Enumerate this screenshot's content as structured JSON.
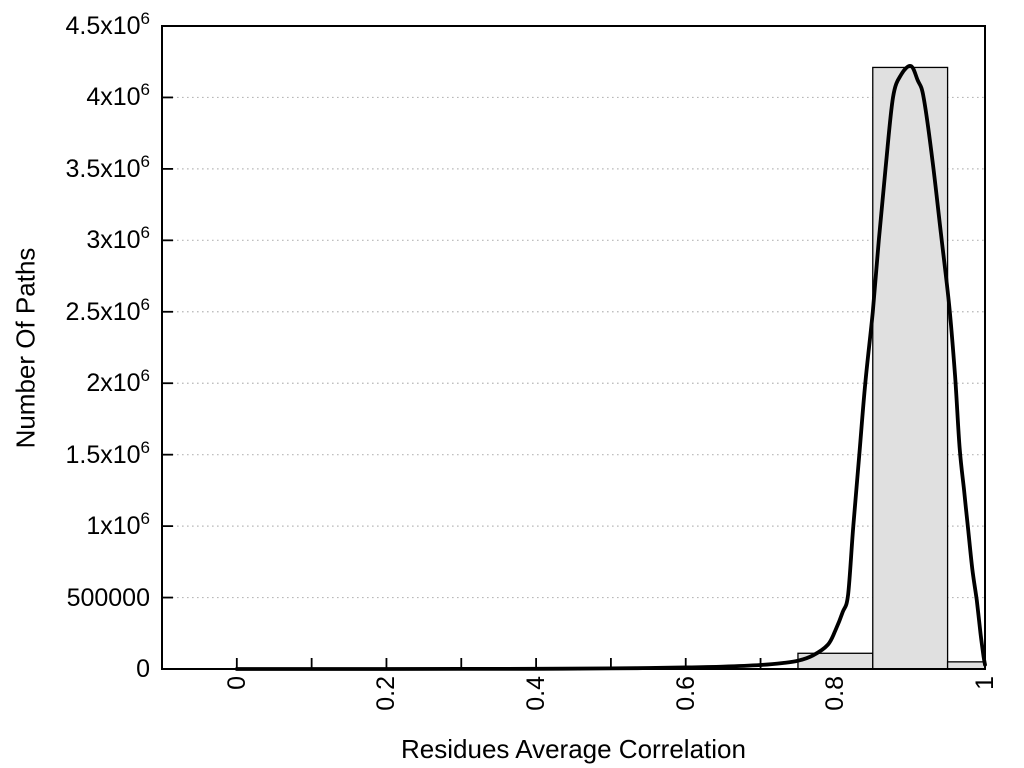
{
  "background_color": "#ffffff",
  "chart_data": {
    "type": "bar",
    "subtype": "histogram-with-fit-curve",
    "title": "",
    "xlabel": "Residues Average Correlation",
    "ylabel": "Number Of Paths",
    "xlim": [
      -0.1,
      1.0
    ],
    "ylim": [
      0,
      4500000
    ],
    "grid": "horizontal dotted gridlines at y major ticks",
    "legend": "none",
    "axis_color": "#000000",
    "gridline_color": "#b8b8b8",
    "x_tick_label_rotation_deg": -90,
    "x_ticks": [
      {
        "value": 0.0,
        "label": "0"
      },
      {
        "value": 0.1,
        "label": ""
      },
      {
        "value": 0.2,
        "label": "0.2"
      },
      {
        "value": 0.3,
        "label": ""
      },
      {
        "value": 0.4,
        "label": "0.4"
      },
      {
        "value": 0.5,
        "label": ""
      },
      {
        "value": 0.6,
        "label": "0.6"
      },
      {
        "value": 0.7,
        "label": ""
      },
      {
        "value": 0.8,
        "label": "0.8"
      },
      {
        "value": 0.9,
        "label": ""
      },
      {
        "value": 1.0,
        "label": "1"
      }
    ],
    "y_ticks": [
      {
        "value": 0,
        "label": "0"
      },
      {
        "value": 500000,
        "label": "500000"
      },
      {
        "value": 1000000,
        "label": "1x10^6"
      },
      {
        "value": 1500000,
        "label": "1.5x10^6"
      },
      {
        "value": 2000000,
        "label": "2x10^6"
      },
      {
        "value": 2500000,
        "label": "2.5x10^6"
      },
      {
        "value": 3000000,
        "label": "3x10^6"
      },
      {
        "value": 3500000,
        "label": "3.5x10^6"
      },
      {
        "value": 4000000,
        "label": "4x10^6"
      },
      {
        "value": 4500000,
        "label": "4.5x10^6"
      }
    ],
    "histogram": {
      "bin_width": 0.1,
      "fill_color": "#e0e0e0",
      "stroke_color": "#000000",
      "bars": [
        {
          "x0": 0.75,
          "x1": 0.85,
          "count": 110000
        },
        {
          "x0": 0.85,
          "x1": 0.95,
          "count": 4210000
        },
        {
          "x0": 0.95,
          "x1": 1.0,
          "count": 50000
        }
      ]
    },
    "curve": {
      "name": "density-fit-curve",
      "color": "#000000",
      "stroke_width": 3.8,
      "peak": {
        "x": 0.901,
        "y": 4220000
      },
      "points": [
        [
          0.0,
          0
        ],
        [
          0.1,
          0
        ],
        [
          0.2,
          0
        ],
        [
          0.3,
          500
        ],
        [
          0.4,
          1500
        ],
        [
          0.5,
          4000
        ],
        [
          0.55,
          7000
        ],
        [
          0.6,
          11000
        ],
        [
          0.65,
          17000
        ],
        [
          0.7,
          28000
        ],
        [
          0.73,
          42000
        ],
        [
          0.75,
          58000
        ],
        [
          0.77,
          95000
        ],
        [
          0.79,
          170000
        ],
        [
          0.8,
          270000
        ],
        [
          0.81,
          400000
        ],
        [
          0.817,
          520000
        ],
        [
          0.824,
          1000000
        ],
        [
          0.832,
          1500000
        ],
        [
          0.84,
          2000000
        ],
        [
          0.85,
          2500000
        ],
        [
          0.858,
          3000000
        ],
        [
          0.867,
          3500000
        ],
        [
          0.877,
          4000000
        ],
        [
          0.888,
          4160000
        ],
        [
          0.901,
          4220000
        ],
        [
          0.91,
          4120000
        ],
        [
          0.918,
          4000000
        ],
        [
          0.93,
          3550000
        ],
        [
          0.941,
          3050000
        ],
        [
          0.952,
          2550000
        ],
        [
          0.96,
          2050000
        ],
        [
          0.966,
          1550000
        ],
        [
          0.972,
          1250000
        ],
        [
          0.977,
          1000000
        ],
        [
          0.983,
          700000
        ],
        [
          0.989,
          480000
        ],
        [
          0.994,
          250000
        ],
        [
          0.998,
          90000
        ],
        [
          1.0,
          30000
        ]
      ]
    }
  }
}
